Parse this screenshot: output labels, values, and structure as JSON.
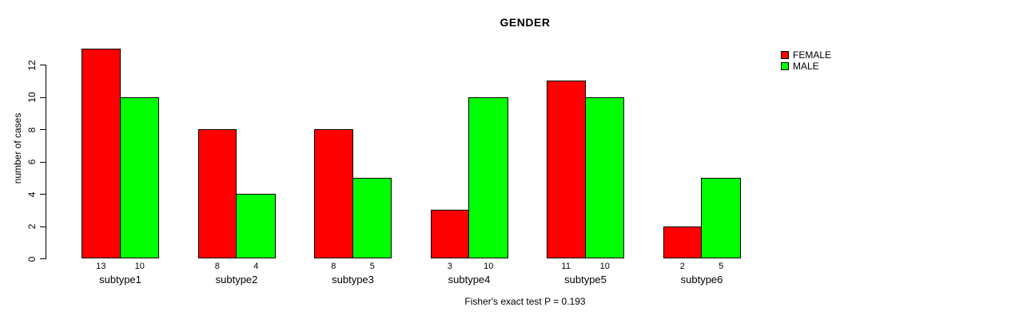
{
  "page": {
    "background": "#ffffff"
  },
  "chart_data": {
    "type": "bar",
    "title": "GENDER",
    "ylabel": "number of cases",
    "xlabel": "",
    "categories": [
      "subtype1",
      "subtype2",
      "subtype3",
      "subtype4",
      "subtype5",
      "subtype6"
    ],
    "series": [
      {
        "name": "FEMALE",
        "color": "#ff0000",
        "values": [
          13,
          8,
          8,
          3,
          11,
          2
        ]
      },
      {
        "name": "MALE",
        "color": "#00ff00",
        "values": [
          10,
          4,
          5,
          10,
          10,
          5
        ]
      }
    ],
    "bar_value_labels": [
      [
        "13",
        "10"
      ],
      [
        "8",
        "4"
      ],
      [
        "8",
        "5"
      ],
      [
        "3",
        "10"
      ],
      [
        "11",
        "10"
      ],
      [
        "2",
        "5"
      ]
    ],
    "yticks": [
      0,
      2,
      4,
      6,
      8,
      10,
      12
    ],
    "ylim": [
      0,
      13.2
    ],
    "grid": false,
    "legend_position": "top-right",
    "bar_border_color": "#000000",
    "footer": "Fisher's exact test P = 0.193"
  }
}
